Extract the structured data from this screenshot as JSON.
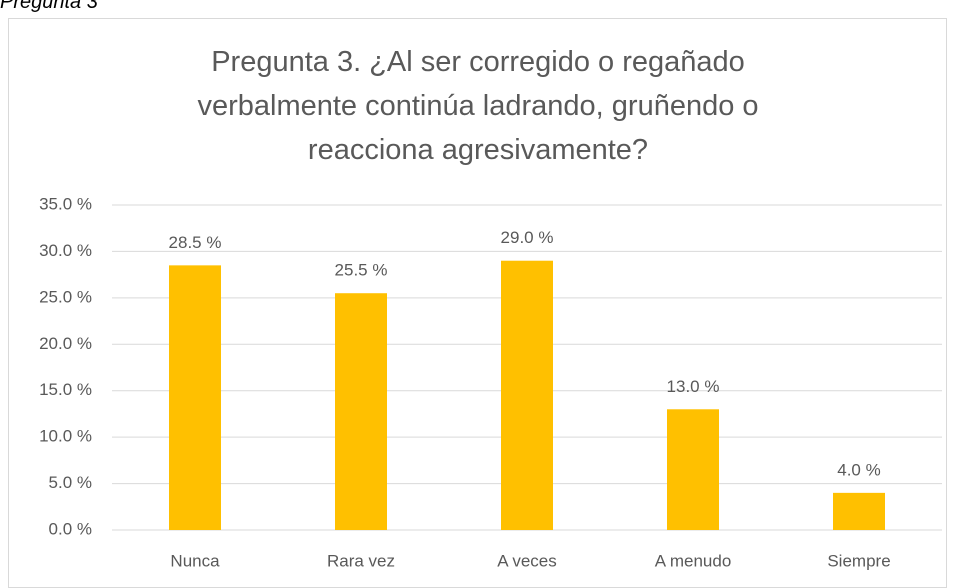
{
  "caption": "Pregunta 3",
  "chart_data": {
    "type": "bar",
    "title": "Pregunta 3. ¿Al ser corregido o regañado verbalmente continúa ladrando, gruñendo o reacciona agresivamente?",
    "categories": [
      "Nunca",
      "Rara vez",
      "A veces",
      "A menudo",
      "Siempre"
    ],
    "values": [
      28.5,
      25.5,
      29.0,
      13.0,
      4.0
    ],
    "value_labels": [
      "28.5 %",
      "25.5 %",
      "29.0 %",
      "13.0 %",
      "4.0 %"
    ],
    "color": "#ffc000",
    "ylim": [
      0,
      35
    ],
    "yticks": [
      {
        "value": 0,
        "label": "0.0 %"
      },
      {
        "value": 5,
        "label": "5.0 %"
      },
      {
        "value": 10,
        "label": "10.0 %"
      },
      {
        "value": 15,
        "label": "15.0 %"
      },
      {
        "value": 20,
        "label": "20.0 %"
      },
      {
        "value": 25,
        "label": "25.0 %"
      },
      {
        "value": 30,
        "label": "30.0 %"
      },
      {
        "value": 35,
        "label": "35.0 %"
      }
    ],
    "grid": true
  }
}
